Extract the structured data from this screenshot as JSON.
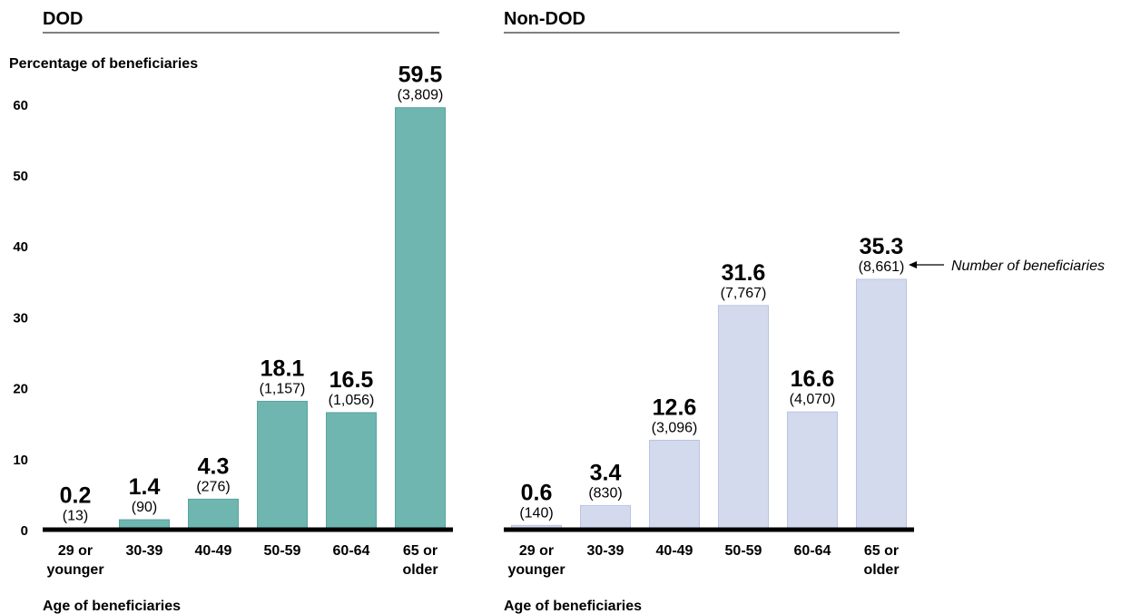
{
  "annotation": "Number of beneficiaries",
  "chart_data": [
    {
      "type": "bar",
      "title": "DOD",
      "ylabel": "Percentage of beneficiaries",
      "xlabel": "Age of beneficiaries",
      "ylim": [
        0,
        60
      ],
      "yticks": [
        0,
        10,
        20,
        30,
        40,
        50,
        60
      ],
      "categories": [
        [
          "29 or",
          "younger"
        ],
        [
          "30-39"
        ],
        [
          "40-49"
        ],
        [
          "50-59"
        ],
        [
          "60-64"
        ],
        [
          "65 or",
          "older"
        ]
      ],
      "values": [
        0.2,
        1.4,
        4.3,
        18.1,
        16.5,
        59.5
      ],
      "value_labels": [
        "0.2",
        "1.4",
        "4.3",
        "18.1",
        "16.5",
        "59.5"
      ],
      "counts": [
        "(13)",
        "(90)",
        "(276)",
        "(1,157)",
        "(1,056)",
        "(3,809)"
      ],
      "bar_color": "#6fb6b1",
      "bar_stroke": "#5aa39e",
      "grid": false
    },
    {
      "type": "bar",
      "title": "Non-DOD",
      "ylabel": "",
      "xlabel": "Age of beneficiaries",
      "ylim": [
        0,
        60
      ],
      "yticks": [],
      "categories": [
        [
          "29 or",
          "younger"
        ],
        [
          "30-39"
        ],
        [
          "40-49"
        ],
        [
          "50-59"
        ],
        [
          "60-64"
        ],
        [
          "65 or",
          "older"
        ]
      ],
      "values": [
        0.6,
        3.4,
        12.6,
        31.6,
        16.6,
        35.3
      ],
      "value_labels": [
        "0.6",
        "3.4",
        "12.6",
        "31.6",
        "16.6",
        "35.3"
      ],
      "counts": [
        "(140)",
        "(830)",
        "(3,096)",
        "(7,767)",
        "(4,070)",
        "(8,661)"
      ],
      "bar_color": "#d4daee",
      "bar_stroke": "#b9c3e2",
      "grid": false
    }
  ]
}
